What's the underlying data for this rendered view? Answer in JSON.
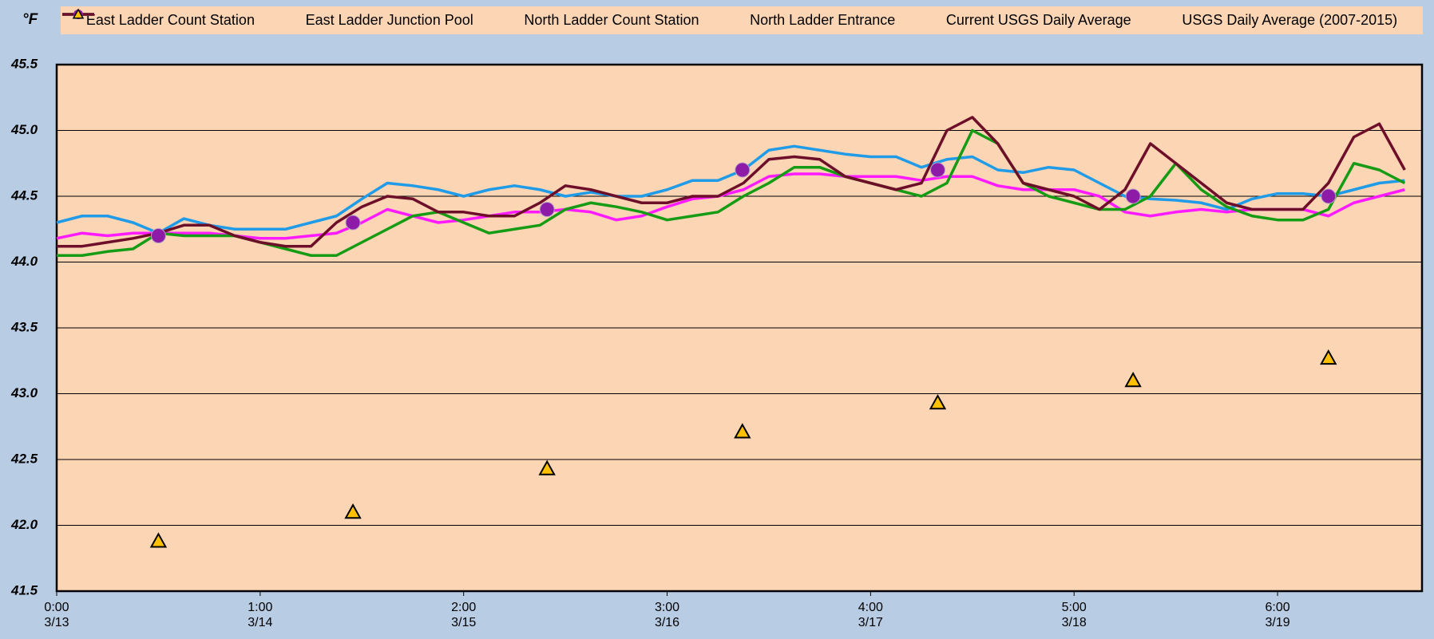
{
  "chart_data": {
    "type": "line",
    "y_unit_label": "°F",
    "x": [
      0,
      0.125,
      0.25,
      0.375,
      0.5,
      0.625,
      0.75,
      0.875,
      1,
      1.125,
      1.25,
      1.375,
      1.5,
      1.625,
      1.75,
      1.875,
      2,
      2.125,
      2.25,
      2.375,
      2.5,
      2.625,
      2.75,
      2.875,
      3,
      3.125,
      3.25,
      3.375,
      3.5,
      3.625,
      3.75,
      3.875,
      4,
      4.125,
      4.25,
      4.375,
      4.5,
      4.625,
      4.75,
      4.875,
      5,
      5.125,
      5.25,
      5.375,
      5.5,
      5.625,
      5.75,
      5.875,
      6,
      6.125,
      6.25,
      6.375,
      6.5,
      6.625
    ],
    "series": [
      {
        "name": "East Ladder Count Station",
        "color": "#1f9be8",
        "marker": "line",
        "values": [
          44.3,
          44.35,
          44.35,
          44.3,
          44.22,
          44.33,
          44.28,
          44.25,
          44.25,
          44.25,
          44.3,
          44.35,
          44.48,
          44.6,
          44.58,
          44.55,
          44.5,
          44.55,
          44.58,
          44.55,
          44.5,
          44.53,
          44.5,
          44.5,
          44.55,
          44.62,
          44.62,
          44.7,
          44.85,
          44.88,
          44.85,
          44.82,
          44.8,
          44.8,
          44.72,
          44.78,
          44.8,
          44.7,
          44.68,
          44.72,
          44.7,
          44.6,
          44.5,
          44.48,
          44.47,
          44.45,
          44.4,
          44.48,
          44.52,
          44.52,
          44.5,
          44.55,
          44.6,
          44.62
        ]
      },
      {
        "name": "East Ladder Junction Pool",
        "color": "#ff1aff",
        "marker": "line",
        "values": [
          44.18,
          44.22,
          44.2,
          44.22,
          44.22,
          44.22,
          44.22,
          44.2,
          44.18,
          44.18,
          44.2,
          44.22,
          44.3,
          44.4,
          44.35,
          44.3,
          44.32,
          44.35,
          44.38,
          44.38,
          44.4,
          44.38,
          44.32,
          44.35,
          44.42,
          44.48,
          44.5,
          44.55,
          44.65,
          44.67,
          44.67,
          44.65,
          44.65,
          44.65,
          44.62,
          44.65,
          44.65,
          44.58,
          44.55,
          44.55,
          44.55,
          44.5,
          44.38,
          44.35,
          44.38,
          44.4,
          44.38,
          44.4,
          44.4,
          44.4,
          44.35,
          44.45,
          44.5,
          44.55
        ]
      },
      {
        "name": "North Ladder Count Station",
        "color": "#169b14",
        "marker": "line",
        "values": [
          44.05,
          44.05,
          44.08,
          44.1,
          44.22,
          44.2,
          44.2,
          44.2,
          44.15,
          44.1,
          44.05,
          44.05,
          44.15,
          44.25,
          44.35,
          44.38,
          44.3,
          44.22,
          44.25,
          44.28,
          44.4,
          44.45,
          44.42,
          44.38,
          44.32,
          44.35,
          44.38,
          44.5,
          44.6,
          44.72,
          44.72,
          44.65,
          44.6,
          44.55,
          44.5,
          44.6,
          45.0,
          44.9,
          44.6,
          44.5,
          44.45,
          44.4,
          44.4,
          44.5,
          44.75,
          44.55,
          44.42,
          44.35,
          44.32,
          44.32,
          44.4,
          44.75,
          44.7,
          44.6
        ]
      },
      {
        "name": "North Ladder Entrance",
        "color": "#6e0f2a",
        "marker": "line",
        "values": [
          44.12,
          44.12,
          44.15,
          44.18,
          44.22,
          44.28,
          44.28,
          44.2,
          44.15,
          44.12,
          44.12,
          44.3,
          44.42,
          44.5,
          44.48,
          44.38,
          44.38,
          44.35,
          44.35,
          44.45,
          44.58,
          44.55,
          44.5,
          44.45,
          44.45,
          44.5,
          44.5,
          44.6,
          44.78,
          44.8,
          44.78,
          44.65,
          44.6,
          44.55,
          44.6,
          45.0,
          45.1,
          44.9,
          44.6,
          44.55,
          44.5,
          44.4,
          44.55,
          44.9,
          44.75,
          44.6,
          44.45,
          44.4,
          44.4,
          44.4,
          44.6,
          44.95,
          45.05,
          44.7
        ]
      },
      {
        "name": "Current USGS Daily Average",
        "color": "#8e1ba8",
        "marker": "circle",
        "x": [
          0.5,
          1.456,
          2.41,
          3.37,
          4.33,
          5.29,
          6.25
        ],
        "values": [
          44.2,
          44.3,
          44.4,
          44.7,
          44.7,
          44.5,
          44.5
        ]
      },
      {
        "name": "USGS Daily Average (2007-2015)",
        "color": "#ffc000",
        "marker": "triangle",
        "x": [
          0.5,
          1.456,
          2.41,
          3.37,
          4.33,
          5.29,
          6.25
        ],
        "values": [
          41.88,
          42.1,
          42.43,
          42.71,
          42.93,
          43.1,
          43.27
        ]
      }
    ],
    "xlim": [
      0,
      6.71
    ],
    "xticks": [
      {
        "value": 0,
        "label": "0:00\n3/13"
      },
      {
        "value": 1,
        "label": "1:00\n3/14"
      },
      {
        "value": 2,
        "label": "2:00\n3/15"
      },
      {
        "value": 3,
        "label": "3:00\n3/16"
      },
      {
        "value": 4,
        "label": "4:00\n3/17"
      },
      {
        "value": 5,
        "label": "5:00\n3/18"
      },
      {
        "value": 6,
        "label": "6:00\n3/19"
      }
    ],
    "ylim": [
      41.5,
      45.5
    ],
    "yticks": [
      41.5,
      {
        "value": 42,
        "label": "42.0"
      },
      42.5,
      {
        "value": 43,
        "label": "43.0"
      },
      43.5,
      {
        "value": 44,
        "label": "44.0"
      },
      44.5,
      {
        "value": 45,
        "label": "45.0"
      },
      45.5
    ],
    "grid": true
  }
}
